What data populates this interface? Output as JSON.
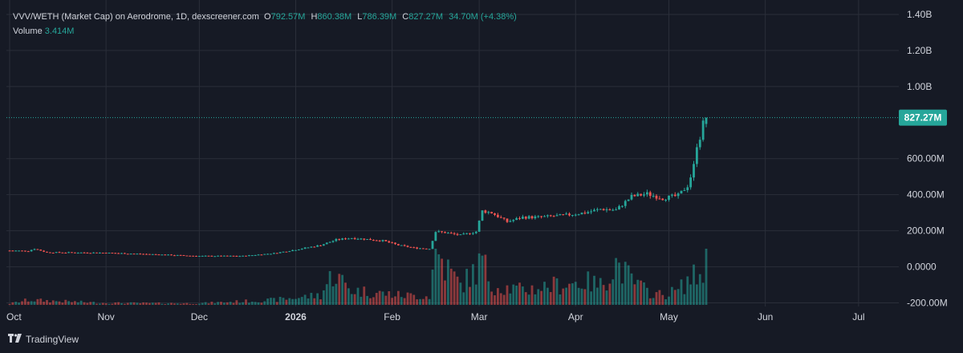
{
  "legend": {
    "pair": "VVV/WETH (Market Cap) on Aerodrome, 1D, dexscreener.com",
    "o_label": "O",
    "o_value": "792.57M",
    "h_label": "H",
    "h_value": "860.38M",
    "l_label": "L",
    "l_value": "786.39M",
    "c_label": "C",
    "c_value": "827.27M",
    "change": "34.70M (+4.38%)",
    "volume_label": "Volume",
    "volume_value": "3.414M"
  },
  "price_badge": "827.27M",
  "footer": {
    "brand": "TradingView"
  },
  "colors": {
    "up": "#26a69a",
    "down": "#ef5350",
    "bg": "#161a25",
    "grid": "#2a2e39",
    "text": "#d1d4dc"
  },
  "chart_data": {
    "type": "candlestick",
    "title": "VVV/WETH (Market Cap) on Aerodrome, 1D, dexscreener.com",
    "y_ticks": [
      "1.40B",
      "1.20B",
      "1.00B",
      "600.00M",
      "400.00M",
      "200.00M",
      "0.0000",
      "-200.00M"
    ],
    "y_tick_values": [
      1400,
      1200,
      1000,
      600,
      400,
      200,
      0,
      -200
    ],
    "ylim": [
      -220,
      1480
    ],
    "y_unit": "M",
    "x_ticks": [
      {
        "label": "Oct",
        "day": 0,
        "bold": false
      },
      {
        "label": "Nov",
        "day": 31,
        "bold": false
      },
      {
        "label": "Dec",
        "day": 61,
        "bold": false
      },
      {
        "label": "2026",
        "day": 92,
        "bold": true
      },
      {
        "label": "Feb",
        "day": 123,
        "bold": false
      },
      {
        "label": "Mar",
        "day": 151,
        "bold": false
      },
      {
        "label": "Apr",
        "day": 182,
        "bold": false
      },
      {
        "label": "May",
        "day": 212,
        "bold": false
      },
      {
        "label": "Jun",
        "day": 243,
        "bold": false
      },
      {
        "label": "Jul",
        "day": 273,
        "bold": false
      }
    ],
    "last_price": 827.27,
    "close_anchors": [
      [
        0,
        90
      ],
      [
        6,
        88
      ],
      [
        8,
        100
      ],
      [
        12,
        80
      ],
      [
        30,
        78
      ],
      [
        45,
        70
      ],
      [
        60,
        60
      ],
      [
        75,
        60
      ],
      [
        85,
        75
      ],
      [
        92,
        95
      ],
      [
        100,
        120
      ],
      [
        105,
        150
      ],
      [
        110,
        160
      ],
      [
        120,
        145
      ],
      [
        125,
        120
      ],
      [
        130,
        105
      ],
      [
        135,
        100
      ],
      [
        137,
        195
      ],
      [
        140,
        190
      ],
      [
        145,
        175
      ],
      [
        150,
        195
      ],
      [
        152,
        310
      ],
      [
        155,
        300
      ],
      [
        160,
        250
      ],
      [
        165,
        275
      ],
      [
        170,
        275
      ],
      [
        178,
        285
      ],
      [
        185,
        300
      ],
      [
        190,
        320
      ],
      [
        195,
        315
      ],
      [
        200,
        390
      ],
      [
        205,
        405
      ],
      [
        210,
        380
      ],
      [
        215,
        395
      ],
      [
        218,
        450
      ],
      [
        219,
        500
      ],
      [
        220,
        560
      ],
      [
        221,
        680
      ],
      [
        222,
        720
      ],
      [
        223,
        792.57
      ],
      [
        224,
        827.27
      ]
    ],
    "volume_anchors": [
      [
        0,
        5
      ],
      [
        6,
        20
      ],
      [
        30,
        8
      ],
      [
        60,
        6
      ],
      [
        85,
        20
      ],
      [
        100,
        40
      ],
      [
        104,
        130
      ],
      [
        110,
        60
      ],
      [
        125,
        40
      ],
      [
        135,
        35
      ],
      [
        137,
        230
      ],
      [
        140,
        160
      ],
      [
        145,
        80
      ],
      [
        150,
        140
      ],
      [
        152,
        180
      ],
      [
        155,
        80
      ],
      [
        165,
        60
      ],
      [
        175,
        80
      ],
      [
        185,
        95
      ],
      [
        190,
        80
      ],
      [
        195,
        170
      ],
      [
        200,
        100
      ],
      [
        205,
        55
      ],
      [
        210,
        40
      ],
      [
        215,
        60
      ],
      [
        219,
        110
      ],
      [
        222,
        120
      ],
      [
        224,
        190
      ]
    ],
    "volume_max": 230
  }
}
